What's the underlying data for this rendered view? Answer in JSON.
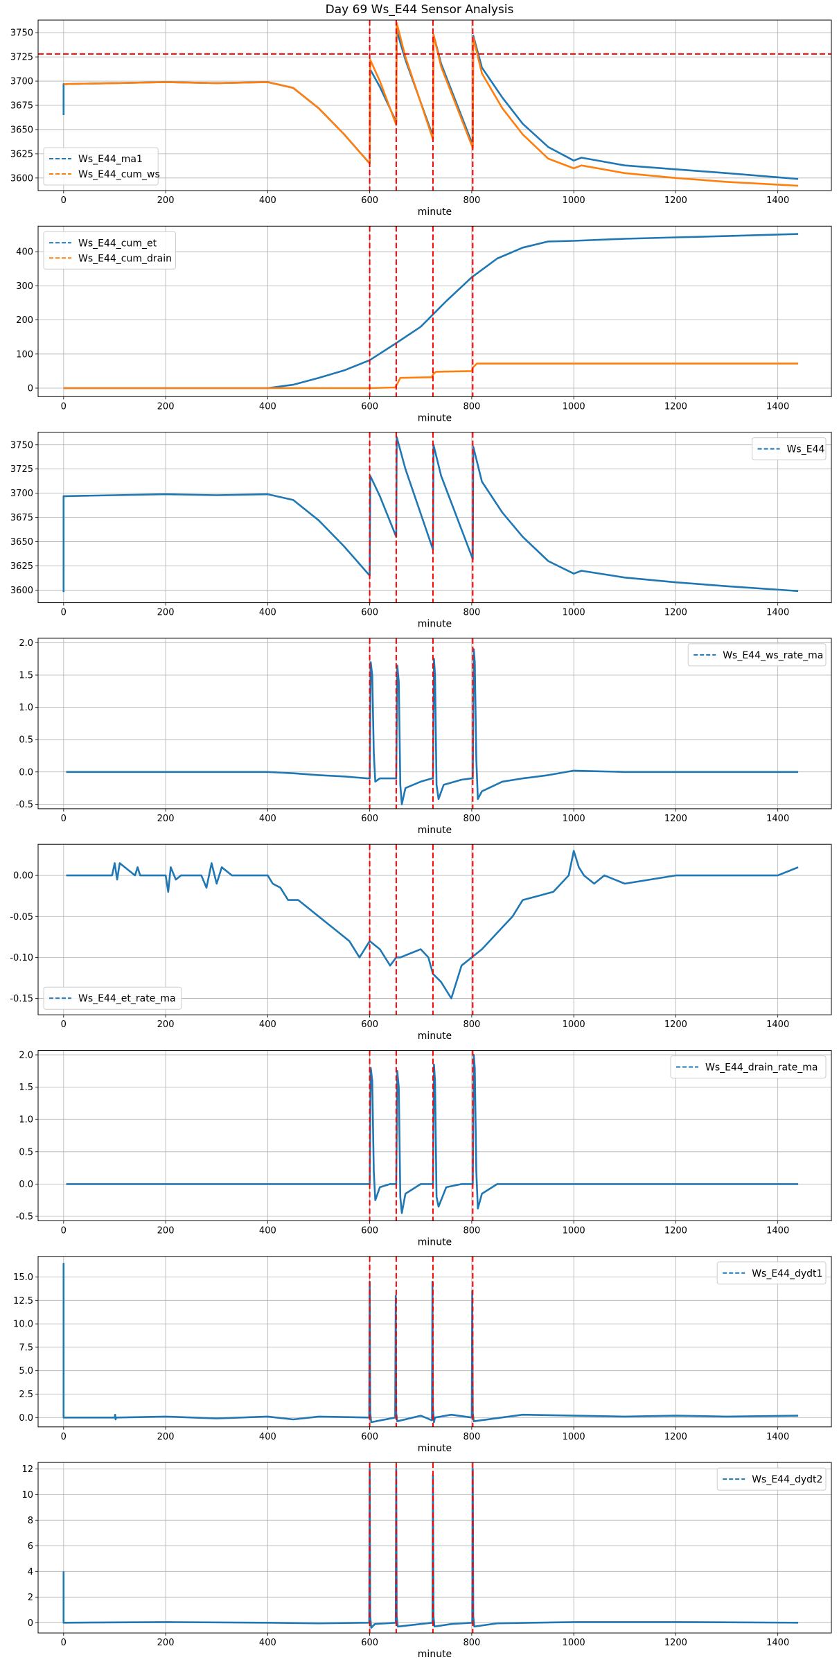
{
  "figure": {
    "title": "Day 69 Ws_E44 Sensor Analysis"
  },
  "colors": {
    "blue": "#1f77b4",
    "orange": "#ff7f0e",
    "red": "#ff0000",
    "grid": "#b0b0b0"
  },
  "chart_data": [
    {
      "type": "line",
      "xlabel": "minute",
      "xlim": [
        -50,
        1505
      ],
      "ylim": [
        3587,
        3763
      ],
      "xticks": [
        0,
        200,
        400,
        600,
        800,
        1000,
        1200,
        1400
      ],
      "yticks": [
        3600,
        3625,
        3650,
        3675,
        3700,
        3725,
        3750
      ],
      "ytick_labels": [
        "3600",
        "3625",
        "3650",
        "3675",
        "3700",
        "3725",
        "3750"
      ],
      "xtick_labels": [
        "0",
        "200",
        "400",
        "600",
        "800",
        "1000",
        "1200",
        "1400"
      ],
      "legend": "lower-left",
      "hline": 3728,
      "vlines": [
        600,
        652,
        724,
        802
      ],
      "series": [
        {
          "name": "Ws_E44_ma1",
          "color": "blue",
          "x": [
            0,
            0,
            3,
            100,
            200,
            300,
            400,
            450,
            500,
            550,
            600,
            601,
            620,
            652,
            653,
            670,
            724,
            725,
            740,
            802,
            803,
            820,
            860,
            900,
            950,
            1000,
            1015,
            1100,
            1200,
            1300,
            1440
          ],
          "y": [
            3665,
            3697,
            3697,
            3698,
            3699,
            3698,
            3699,
            3693,
            3672,
            3645,
            3615,
            3712,
            3694,
            3658,
            3752,
            3722,
            3643,
            3748,
            3718,
            3634,
            3747,
            3714,
            3683,
            3656,
            3632,
            3618,
            3621,
            3613,
            3609,
            3605,
            3599
          ]
        },
        {
          "name": "Ws_E44_cum_ws",
          "color": "orange",
          "x": [
            0,
            3,
            100,
            200,
            300,
            400,
            450,
            500,
            550,
            600,
            601,
            620,
            652,
            653,
            670,
            724,
            725,
            740,
            802,
            803,
            820,
            860,
            900,
            950,
            1000,
            1015,
            1100,
            1200,
            1300,
            1440
          ],
          "y": [
            3697,
            3697,
            3698,
            3699,
            3698,
            3699,
            3693,
            3672,
            3645,
            3615,
            3722,
            3700,
            3655,
            3760,
            3725,
            3640,
            3748,
            3715,
            3631,
            3745,
            3708,
            3672,
            3645,
            3620,
            3610,
            3613,
            3605,
            3600,
            3596,
            3592
          ]
        }
      ]
    },
    {
      "type": "line",
      "xlabel": "minute",
      "xlim": [
        -50,
        1505
      ],
      "ylim": [
        -25,
        475
      ],
      "xticks": [
        0,
        200,
        400,
        600,
        800,
        1000,
        1200,
        1400
      ],
      "yticks": [
        0,
        100,
        200,
        300,
        400
      ],
      "ytick_labels": [
        "0",
        "100",
        "200",
        "300",
        "400"
      ],
      "xtick_labels": [
        "0",
        "200",
        "400",
        "600",
        "800",
        "1000",
        "1200",
        "1400"
      ],
      "legend": "upper-left",
      "vlines": [
        600,
        652,
        724,
        802
      ],
      "series": [
        {
          "name": "Ws_E44_cum_et",
          "color": "blue",
          "x": [
            0,
            200,
            400,
            450,
            500,
            550,
            600,
            650,
            700,
            750,
            800,
            850,
            900,
            950,
            1000,
            1100,
            1200,
            1300,
            1440
          ],
          "y": [
            0,
            0,
            0,
            10,
            30,
            52,
            82,
            130,
            180,
            255,
            325,
            380,
            412,
            430,
            432,
            438,
            442,
            446,
            452
          ]
        },
        {
          "name": "Ws_E44_cum_drain",
          "color": "orange",
          "x": [
            0,
            600,
            650,
            655,
            660,
            722,
            724,
            730,
            800,
            802,
            810,
            900,
            1440
          ],
          "y": [
            0,
            0,
            2,
            15,
            30,
            32,
            40,
            48,
            50,
            60,
            72,
            72,
            72
          ]
        }
      ]
    },
    {
      "type": "line",
      "xlabel": "minute",
      "xlim": [
        -50,
        1505
      ],
      "ylim": [
        3587,
        3763
      ],
      "xticks": [
        0,
        200,
        400,
        600,
        800,
        1000,
        1200,
        1400
      ],
      "yticks": [
        3600,
        3625,
        3650,
        3675,
        3700,
        3725,
        3750
      ],
      "ytick_labels": [
        "3600",
        "3625",
        "3650",
        "3675",
        "3700",
        "3725",
        "3750"
      ],
      "xtick_labels": [
        "0",
        "200",
        "400",
        "600",
        "800",
        "1000",
        "1200",
        "1400"
      ],
      "legend": "upper-right",
      "vlines": [
        600,
        652,
        724,
        802
      ],
      "series": [
        {
          "name": "Ws_E44",
          "color": "blue",
          "x": [
            0,
            0,
            3,
            100,
            200,
            300,
            400,
            450,
            500,
            550,
            600,
            601,
            620,
            652,
            653,
            670,
            724,
            725,
            740,
            802,
            803,
            820,
            860,
            900,
            950,
            1000,
            1015,
            1100,
            1200,
            1300,
            1440
          ],
          "y": [
            3598,
            3697,
            3697,
            3698,
            3699,
            3698,
            3699,
            3693,
            3672,
            3645,
            3615,
            3718,
            3697,
            3655,
            3758,
            3725,
            3642,
            3750,
            3718,
            3632,
            3748,
            3712,
            3680,
            3655,
            3630,
            3617,
            3620,
            3613,
            3608,
            3604,
            3599
          ]
        }
      ]
    },
    {
      "type": "line",
      "xlabel": "minute",
      "xlim": [
        -50,
        1505
      ],
      "ylim": [
        -0.57,
        2.07
      ],
      "xticks": [
        0,
        200,
        400,
        600,
        800,
        1000,
        1200,
        1400
      ],
      "yticks": [
        -0.5,
        0,
        0.5,
        1,
        1.5,
        2
      ],
      "ytick_labels": [
        "-0.5",
        "0.0",
        "0.5",
        "1.0",
        "1.5",
        "2.0"
      ],
      "xtick_labels": [
        "0",
        "200",
        "400",
        "600",
        "800",
        "1000",
        "1200",
        "1400"
      ],
      "legend": "upper-right",
      "vlines": [
        600,
        652,
        724,
        802
      ],
      "series": [
        {
          "name": "Ws_E44_ws_rate_ma",
          "color": "blue",
          "x": [
            5,
            400,
            450,
            500,
            550,
            595,
            600,
            602,
            605,
            608,
            611,
            620,
            650,
            652,
            654,
            657,
            660,
            663,
            670,
            700,
            722,
            724,
            726,
            728,
            731,
            735,
            745,
            780,
            800,
            802,
            804,
            806,
            809,
            812,
            820,
            860,
            900,
            950,
            1000,
            1100,
            1200,
            1300,
            1440
          ],
          "y": [
            0,
            0,
            -0.02,
            -0.05,
            -0.07,
            -0.1,
            -0.1,
            1.7,
            1.5,
            0.3,
            -0.15,
            -0.1,
            -0.1,
            -0.1,
            1.65,
            1.4,
            -0.2,
            -0.5,
            -0.25,
            -0.15,
            -0.1,
            -0.1,
            1.75,
            1.5,
            -0.2,
            -0.42,
            -0.2,
            -0.12,
            -0.1,
            -0.1,
            1.9,
            1.7,
            0.2,
            -0.42,
            -0.3,
            -0.15,
            -0.1,
            -0.05,
            0.02,
            0,
            0,
            0,
            0
          ]
        }
      ]
    },
    {
      "type": "line",
      "xlabel": "minute",
      "xlim": [
        -50,
        1505
      ],
      "ylim": [
        -0.17,
        0.038
      ],
      "xticks": [
        0,
        200,
        400,
        600,
        800,
        1000,
        1200,
        1400
      ],
      "yticks": [
        -0.15,
        -0.1,
        -0.05,
        0,
        0.05
      ],
      "ytick_labels": [
        "-0.15",
        "-0.10",
        "-0.05",
        "0.00",
        ""
      ],
      "xtick_labels": [
        "0",
        "200",
        "400",
        "600",
        "800",
        "1000",
        "1200",
        "1400"
      ],
      "legend": "lower-left",
      "vlines": [
        600,
        652,
        724,
        802
      ],
      "series": [
        {
          "name": "Ws_E44_et_rate_ma",
          "color": "blue",
          "x": [
            5,
            95,
            100,
            105,
            110,
            140,
            145,
            150,
            200,
            205,
            210,
            220,
            230,
            270,
            280,
            290,
            300,
            310,
            330,
            400,
            410,
            425,
            440,
            460,
            480,
            500,
            520,
            540,
            560,
            580,
            600,
            620,
            640,
            652,
            660,
            680,
            700,
            715,
            724,
            740,
            760,
            780,
            800,
            820,
            850,
            880,
            900,
            930,
            960,
            990,
            1000,
            1010,
            1020,
            1040,
            1060,
            1100,
            1200,
            1300,
            1400,
            1440
          ],
          "y": [
            0,
            0,
            0.015,
            -0.005,
            0.015,
            0,
            0.01,
            0,
            0,
            -0.02,
            0.01,
            -0.005,
            0,
            0,
            -0.015,
            0.015,
            -0.01,
            0.01,
            0,
            0,
            -0.01,
            -0.015,
            -0.03,
            -0.03,
            -0.04,
            -0.05,
            -0.06,
            -0.07,
            -0.08,
            -0.1,
            -0.08,
            -0.09,
            -0.11,
            -0.1,
            -0.1,
            -0.095,
            -0.09,
            -0.1,
            -0.12,
            -0.13,
            -0.15,
            -0.11,
            -0.1,
            -0.09,
            -0.07,
            -0.05,
            -0.03,
            -0.025,
            -0.02,
            0,
            0.03,
            0.01,
            0,
            -0.01,
            0,
            -0.01,
            0,
            0,
            0,
            0.01
          ]
        }
      ]
    },
    {
      "type": "line",
      "xlabel": "minute",
      "xlim": [
        -50,
        1505
      ],
      "ylim": [
        -0.57,
        2.07
      ],
      "xticks": [
        0,
        200,
        400,
        600,
        800,
        1000,
        1200,
        1400
      ],
      "yticks": [
        -0.5,
        0,
        0.5,
        1,
        1.5,
        2
      ],
      "ytick_labels": [
        "-0.5",
        "0.0",
        "0.5",
        "1.0",
        "1.5",
        "2.0"
      ],
      "xtick_labels": [
        "0",
        "200",
        "400",
        "600",
        "800",
        "1000",
        "1200",
        "1400"
      ],
      "legend": "upper-right",
      "vlines": [
        600,
        652,
        724,
        802
      ],
      "series": [
        {
          "name": "Ws_E44_drain_rate_ma",
          "color": "blue",
          "x": [
            5,
            600,
            602,
            605,
            608,
            611,
            620,
            640,
            652,
            654,
            657,
            660,
            663,
            670,
            700,
            724,
            726,
            728,
            731,
            735,
            750,
            780,
            802,
            804,
            806,
            809,
            812,
            820,
            850,
            1440
          ],
          "y": [
            0,
            0,
            1.8,
            1.6,
            0.2,
            -0.25,
            -0.05,
            0,
            0,
            1.75,
            1.5,
            -0.2,
            -0.45,
            -0.15,
            0,
            0,
            1.85,
            1.6,
            -0.2,
            -0.35,
            -0.05,
            0,
            0,
            2.0,
            1.8,
            0.2,
            -0.38,
            -0.15,
            0,
            0
          ]
        }
      ]
    },
    {
      "type": "line",
      "xlabel": "minute",
      "xlim": [
        -50,
        1505
      ],
      "ylim": [
        -1.0,
        17.2
      ],
      "xticks": [
        0,
        200,
        400,
        600,
        800,
        1000,
        1200,
        1400
      ],
      "yticks": [
        0,
        2.5,
        5,
        7.5,
        10,
        12.5,
        15
      ],
      "ytick_labels": [
        "0.0",
        "2.5",
        "5.0",
        "7.5",
        "10.0",
        "12.5",
        "15.0"
      ],
      "xtick_labels": [
        "0",
        "200",
        "400",
        "600",
        "800",
        "1000",
        "1200",
        "1400"
      ],
      "legend": "upper-right",
      "vlines": [
        600,
        652,
        724,
        802
      ],
      "series": [
        {
          "name": "Ws_E44_dydt1",
          "color": "blue",
          "x": [
            0,
            0,
            2,
            100,
            101,
            102,
            103,
            200,
            300,
            400,
            450,
            500,
            599,
            600,
            601,
            603,
            650,
            651,
            652,
            654,
            700,
            722,
            723,
            724,
            726,
            728,
            760,
            800,
            801,
            802,
            804,
            900,
            1000,
            1100,
            1200,
            1300,
            1440
          ],
          "y": [
            16.5,
            0,
            0,
            0,
            0.3,
            -0.2,
            0,
            0.1,
            -0.1,
            0.1,
            -0.2,
            0.1,
            0,
            14.5,
            0.5,
            -0.5,
            0,
            13.0,
            0.5,
            -0.4,
            0.2,
            -0.3,
            14.5,
            1.0,
            -0.5,
            0,
            0.3,
            0,
            13.5,
            0.5,
            -0.4,
            0.3,
            0.2,
            0.1,
            0.2,
            0.1,
            0.2
          ]
        }
      ]
    },
    {
      "type": "line",
      "xlabel": "minute",
      "xlim": [
        -50,
        1505
      ],
      "ylim": [
        -0.8,
        12.5
      ],
      "xticks": [
        0,
        200,
        400,
        600,
        800,
        1000,
        1200,
        1400
      ],
      "yticks": [
        0,
        2,
        4,
        6,
        8,
        10,
        12
      ],
      "ytick_labels": [
        "0",
        "2",
        "4",
        "6",
        "8",
        "10",
        "12"
      ],
      "xtick_labels": [
        "0",
        "200",
        "400",
        "600",
        "800",
        "1000",
        "1200",
        "1400"
      ],
      "legend": "upper-right",
      "vlines": [
        600,
        652,
        724,
        802
      ],
      "series": [
        {
          "name": "Ws_E44_dydt2",
          "color": "blue",
          "x": [
            0,
            0,
            2,
            200,
            400,
            500,
            599,
            600,
            601,
            603,
            610,
            651,
            652,
            653,
            655,
            700,
            723,
            724,
            725,
            727,
            760,
            801,
            802,
            803,
            805,
            850,
            1000,
            1200,
            1440
          ],
          "y": [
            4.0,
            0,
            0,
            0.05,
            0,
            -0.05,
            0,
            12.0,
            0.5,
            -0.4,
            -0.1,
            0,
            12.0,
            0.5,
            -0.3,
            -0.1,
            0,
            11.5,
            0.5,
            -0.3,
            -0.1,
            0,
            12.0,
            0.5,
            -0.3,
            -0.05,
            0.05,
            0.05,
            0
          ]
        }
      ]
    }
  ]
}
